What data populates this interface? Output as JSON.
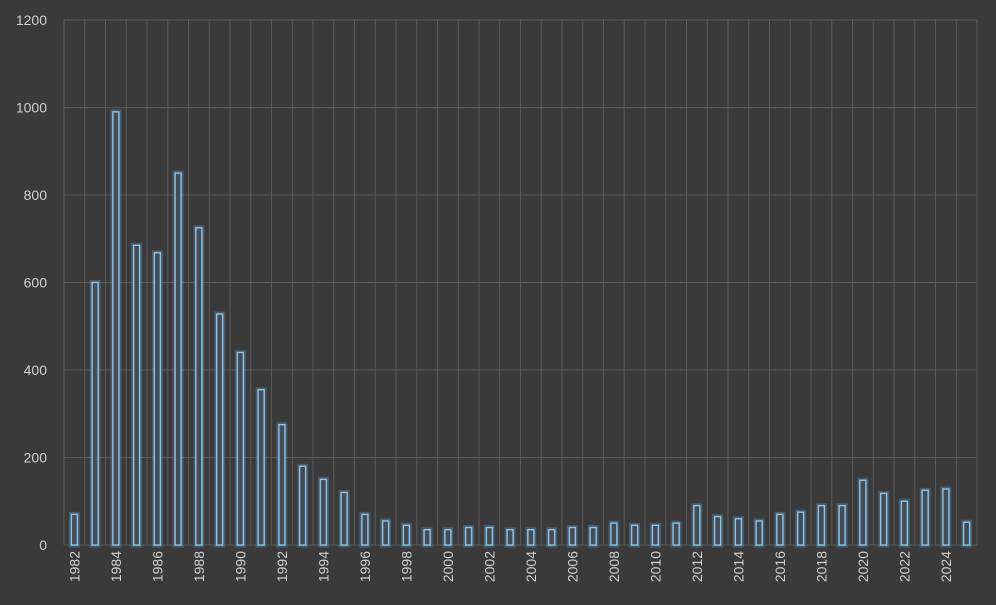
{
  "chart_data": {
    "type": "bar",
    "title": "",
    "xlabel": "",
    "ylabel": "",
    "ylim": [
      0,
      1200
    ],
    "yticks": [
      0,
      200,
      400,
      600,
      800,
      1000,
      1200
    ],
    "grid": true,
    "legend": "none",
    "categories": [
      "1982",
      "1983",
      "1984",
      "1985",
      "1986",
      "1987",
      "1988",
      "1989",
      "1990",
      "1991",
      "1992",
      "1993",
      "1994",
      "1995",
      "1996",
      "1997",
      "1998",
      "1999",
      "2000",
      "2001",
      "2002",
      "2003",
      "2004",
      "2005",
      "2006",
      "2007",
      "2008",
      "2009",
      "2010",
      "2011",
      "2012",
      "2013",
      "2014",
      "2015",
      "2016",
      "2017",
      "2018",
      "2019",
      "2020",
      "2021",
      "2022",
      "2023",
      "2024",
      "2025"
    ],
    "x_tick_labels": [
      "1982",
      "1984",
      "1986",
      "1988",
      "1990",
      "1992",
      "1994",
      "1996",
      "1998",
      "2000",
      "2002",
      "2004",
      "2006",
      "2008",
      "2010",
      "2012",
      "2014",
      "2016",
      "2018",
      "2020",
      "2022",
      "2024"
    ],
    "values": [
      70,
      600,
      990,
      685,
      668,
      850,
      725,
      528,
      440,
      355,
      275,
      180,
      150,
      120,
      70,
      55,
      45,
      35,
      35,
      40,
      40,
      35,
      35,
      35,
      40,
      40,
      50,
      45,
      45,
      50,
      90,
      65,
      60,
      55,
      70,
      75,
      90,
      90,
      148,
      118,
      100,
      125,
      128,
      52
    ],
    "colors": {
      "background": "#3a3a3a",
      "bar_fill": "#444c56",
      "bar_stroke": "#8fc3e8",
      "grid": "#5a5a5a",
      "text": "#d0d0d0"
    }
  }
}
